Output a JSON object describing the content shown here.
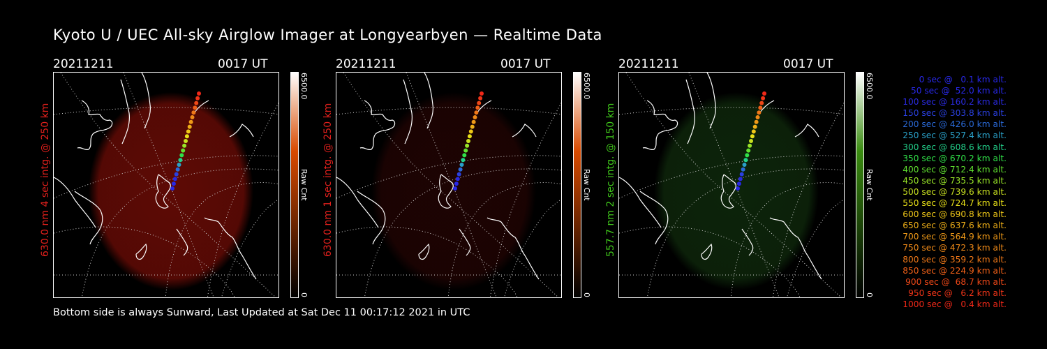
{
  "title": "Kyoto U / UEC All-sky Airglow Imager at Longyearbyen — Realtime Data",
  "footer": "Bottom side is always Sunward, Last Updated at Sat Dec 11 00:17:12 2021 in UTC",
  "panels": [
    {
      "date": "20211211",
      "time": "0017 UT",
      "label": "630.0 nm 4 sec intg. @ 250 km",
      "label_color": "#e0201c",
      "glow_color": "#6e0c06",
      "glow_opacity": 0.85,
      "cbar_max": "6500.0",
      "cbar_unit": "Raw Cnt",
      "cbar_min": "0",
      "cbar_top_color": "#d84a00"
    },
    {
      "date": "20211211",
      "time": "0017 UT",
      "label": "630.0 nm 1 sec intg. @ 250 km",
      "label_color": "#e0201c",
      "glow_color": "#2a0504",
      "glow_opacity": 0.7,
      "cbar_max": "6500.0",
      "cbar_unit": "Raw Cnt",
      "cbar_min": "0",
      "cbar_top_color": "#d84a00"
    },
    {
      "date": "20211211",
      "time": "0017 UT",
      "label": "557.7 nm 2 sec intg. @ 150 km",
      "label_color": "#3fc61a",
      "glow_color": "#0f2a0c",
      "glow_opacity": 0.85,
      "cbar_max": "6500.0",
      "cbar_unit": "Raw Cnt",
      "cbar_min": "0",
      "cbar_top_color": "#3a8c10"
    }
  ],
  "legend": [
    {
      "text": "0 sec @   0.1 km alt.",
      "color": "#2828e8"
    },
    {
      "text": "50 sec @  52.0 km alt.",
      "color": "#2828e8"
    },
    {
      "text": "100 sec @ 160.2 km alt.",
      "color": "#2a2ae0"
    },
    {
      "text": "150 sec @ 303.8 km alt.",
      "color": "#2a40e0"
    },
    {
      "text": "200 sec @ 426.0 km alt.",
      "color": "#2a6ad8"
    },
    {
      "text": "250 sec @ 527.4 km alt.",
      "color": "#2aa0c8"
    },
    {
      "text": "300 sec @ 608.6 km alt.",
      "color": "#22d08a"
    },
    {
      "text": "350 sec @ 670.2 km alt.",
      "color": "#30e048"
    },
    {
      "text": "400 sec @ 712.4 km alt.",
      "color": "#60e030"
    },
    {
      "text": "450 sec @ 735.5 km alt.",
      "color": "#98e428"
    },
    {
      "text": "500 sec @ 739.6 km alt.",
      "color": "#c8e020"
    },
    {
      "text": "550 sec @ 724.7 km alt.",
      "color": "#e8e018"
    },
    {
      "text": "600 sec @ 690.8 km alt.",
      "color": "#f0c818"
    },
    {
      "text": "650 sec @ 637.6 km alt.",
      "color": "#f0b018"
    },
    {
      "text": "700 sec @ 564.9 km alt.",
      "color": "#f09a18"
    },
    {
      "text": "750 sec @ 472.3 km alt.",
      "color": "#f08a18"
    },
    {
      "text": "800 sec @ 359.2 km alt.",
      "color": "#f07818"
    },
    {
      "text": "850 sec @ 224.9 km alt.",
      "color": "#f06018"
    },
    {
      "text": "900 sec @  68.7 km alt.",
      "color": "#f04818"
    },
    {
      "text": "950 sec @   6.2 km alt.",
      "color": "#f03418"
    },
    {
      "text": "1000 sec @   0.4 km alt.",
      "color": "#f02818"
    }
  ]
}
